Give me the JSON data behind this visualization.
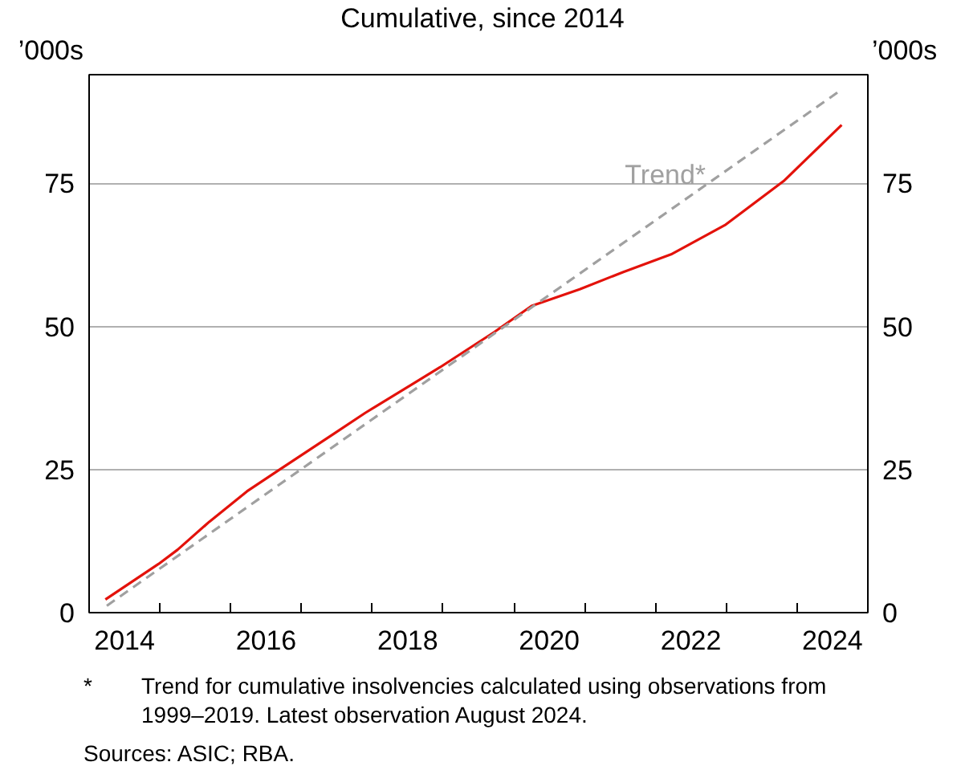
{
  "chart_data": {
    "type": "line",
    "title": "Cumulative, since 2014",
    "ylabel": "’000s",
    "y2label": "’000s",
    "series": [
      {
        "color": "#e3120b",
        "x": [
          2014.23,
          2014.98,
          2015.25,
          2015.7,
          2016.23,
          2016.69,
          2017.45,
          2017.9,
          2018.96,
          2019.72,
          2020.25,
          2020.93,
          2021.54,
          2022.22,
          2022.98,
          2023.81,
          2024.63
        ],
        "values": [
          2.3,
          8.5,
          11.0,
          15.9,
          21.2,
          25.0,
          31.2,
          34.9,
          42.9,
          49.0,
          53.6,
          56.5,
          59.5,
          62.6,
          67.7,
          75.4,
          85.2
        ]
      },
      {
        "name": "Trend*",
        "color": "#a0a0a0",
        "line_style": "dashed",
        "x": [
          2014.25,
          2024.63
        ],
        "values": [
          1.2,
          91.4
        ]
      }
    ],
    "xlim": [
      2014,
      2025
    ],
    "xticks": [
      {
        "value": 2014.5,
        "label": "2014"
      },
      {
        "value": 2015,
        "label": null
      },
      {
        "value": 2016,
        "label": null
      },
      {
        "value": 2016.5,
        "label": "2016"
      },
      {
        "value": 2017,
        "label": null
      },
      {
        "value": 2018,
        "label": null
      },
      {
        "value": 2018.5,
        "label": "2018"
      },
      {
        "value": 2019,
        "label": null
      },
      {
        "value": 2020,
        "label": null
      },
      {
        "value": 2020.5,
        "label": "2020"
      },
      {
        "value": 2021,
        "label": null
      },
      {
        "value": 2022,
        "label": null
      },
      {
        "value": 2022.5,
        "label": "2022"
      },
      {
        "value": 2023,
        "label": null
      },
      {
        "value": 2024,
        "label": null
      },
      {
        "value": 2024.5,
        "label": "2024"
      },
      {
        "value": 2025,
        "label": null
      }
    ],
    "ylim": [
      0,
      94
    ],
    "yticks": [
      0,
      25,
      50,
      75
    ],
    "y2lim": [
      0,
      94
    ],
    "y2ticks": [
      0,
      25,
      50,
      75
    ],
    "grid": "y",
    "line_style": "solid",
    "annotations": [
      "* Trend for cumulative insolvencies calculated using observations from 1999–2019. Latest observation August 2024.",
      "Sources: ASIC; RBA."
    ]
  }
}
